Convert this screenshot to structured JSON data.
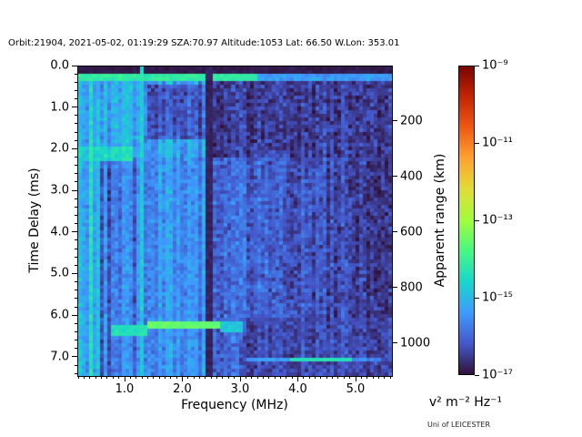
{
  "title": "Orbit:21904, 2021-05-02, 01:19:29 SZA:70.97 Altitude:1053 Lat: 66.50 W.Lon: 353.01",
  "credit": "Uni of LEICESTER",
  "chart_data": {
    "type": "heatmap",
    "title": "Orbit:21904, 2021-05-02, 01:19:29 SZA:70.97 Altitude:1053 Lat: 66.50 W.Lon: 353.01",
    "xlabel": "Frequency (MHz)",
    "ylabel": "Time Delay (ms)",
    "ylabel_right": "Apparent range (km)",
    "colorbar_units": "v² m⁻² Hz⁻¹",
    "x_range_mhz": [
      0.181,
      5.614
    ],
    "x_tick_values": [
      1.0,
      2.0,
      3.0,
      4.0,
      5.0
    ],
    "x_tick_labels": [
      "1.0",
      "2.0",
      "3.0",
      "4.0",
      "5.0"
    ],
    "x_minor_tick_step_mhz": 0.1,
    "y_range_ms": [
      0.0,
      7.44
    ],
    "y_tick_values": [
      0,
      1,
      2,
      3,
      4,
      5,
      6,
      7
    ],
    "y_tick_labels": [
      "0.0",
      "1.0",
      "2.0",
      "3.0",
      "4.0",
      "5.0",
      "6.0",
      "7.0"
    ],
    "y_minor_tick_step_ms": 0.2,
    "right_axis_tick_km": [
      200,
      400,
      600,
      800,
      1000
    ],
    "right_axis_tick_labels": [
      "200",
      "400",
      "600",
      "800",
      "1000"
    ],
    "speed_of_light_km_per_ms": 299.792,
    "colorbar_exponent_range": [
      -17,
      -9
    ],
    "colorbar_tick_exponents": [
      -9,
      -11,
      -13,
      -15,
      -17
    ],
    "colorbar_tick_labels": [
      "10⁻⁹",
      "10⁻¹¹",
      "10⁻¹³",
      "10⁻¹⁵",
      "10⁻¹⁷"
    ],
    "colormap": "turbo",
    "colormap_stops": [
      [
        0.0,
        "#30123b"
      ],
      [
        0.1,
        "#4458cb"
      ],
      [
        0.2,
        "#3e9bfe"
      ],
      [
        0.3,
        "#18d6cb"
      ],
      [
        0.4,
        "#46f884"
      ],
      [
        0.5,
        "#a2fc3c"
      ],
      [
        0.6,
        "#e1dd37"
      ],
      [
        0.7,
        "#fea331"
      ],
      [
        0.8,
        "#ef5a11"
      ],
      [
        0.9,
        "#c42503"
      ],
      [
        1.0,
        "#7a0403"
      ]
    ],
    "heatmap": {
      "cols": 86,
      "rows": 85,
      "seed": 1337,
      "regions": [
        {
          "name": "default",
          "f": [
            0.18,
            5.62
          ],
          "d": [
            0,
            7.44
          ],
          "base": -15.9,
          "jitter": 0.5,
          "streak": 0.3
        },
        {
          "name": "low-freq-bright-columns",
          "f": [
            0.18,
            0.55
          ],
          "d": [
            0,
            7.44
          ],
          "base": -15.0,
          "jitter": 0.45,
          "streak": 0.6
        },
        {
          "name": "topside-noise-left",
          "f": [
            0.55,
            2.45
          ],
          "d": [
            0,
            2.2
          ],
          "base": -15.3,
          "jitter": 0.5,
          "streak": 0.5
        },
        {
          "name": "dark-patch-top-mid",
          "f": [
            1.35,
            2.45
          ],
          "d": [
            0.45,
            1.75
          ],
          "base": -16.2,
          "jitter": 0.55,
          "streak": 0.3
        },
        {
          "name": "dark-top-right",
          "f": [
            2.45,
            5.62
          ],
          "d": [
            0,
            2.2
          ],
          "base": -16.45,
          "jitter": 0.55,
          "streak": 0.2
        },
        {
          "name": "dark-streaks-lower-left",
          "f": [
            0.55,
            1.2
          ],
          "d": [
            2.2,
            7.44
          ],
          "base": -16.0,
          "jitter": 0.5,
          "streak": 0.65
        },
        {
          "name": "mid-noise",
          "f": [
            1.2,
            2.45
          ],
          "d": [
            2.2,
            7.44
          ],
          "base": -15.55,
          "jitter": 0.5,
          "streak": 0.35
        },
        {
          "name": "right-noise-gradient",
          "f": [
            2.45,
            5.62
          ],
          "d": [
            2.2,
            7.44
          ],
          "base": -15.85,
          "jitter": 0.55,
          "streak": 0.25,
          "fgrad": -0.22
        },
        {
          "name": "dark-bottom-right",
          "f": [
            2.95,
            5.62
          ],
          "d": [
            6.0,
            7.44
          ],
          "base": -16.35,
          "jitter": 0.45,
          "streak": 0.2
        },
        {
          "name": "bright-left-2ms",
          "f": [
            0.18,
            1.15
          ],
          "d": [
            1.95,
            2.25
          ],
          "base": -14.6,
          "jitter": 0.35,
          "streak": 0.3
        }
      ],
      "features": [
        {
          "name": "dark-first-row",
          "mode": "set",
          "f": [
            0.18,
            5.62
          ],
          "d": [
            0,
            0.17
          ],
          "exp": -16.9,
          "jitter": 0.12
        },
        {
          "name": "bright-band-0.3ms-left",
          "mode": "max",
          "f": [
            0.18,
            3.3
          ],
          "d": [
            0.17,
            0.39
          ],
          "exp": -14.15,
          "jitter": 0.3
        },
        {
          "name": "bright-band-0.3ms-right",
          "mode": "max",
          "f": [
            3.3,
            5.62
          ],
          "d": [
            0.17,
            0.39
          ],
          "exp": -15.35,
          "jitter": 0.35
        },
        {
          "name": "interference-dark-column-2.4mhz",
          "mode": "set",
          "f": [
            2.39,
            2.51
          ],
          "d": [
            0,
            7.44
          ],
          "exp": -16.8,
          "jitter": 0.15
        },
        {
          "name": "plasma-line-1.3mhz",
          "mode": "max",
          "f": [
            1.23,
            1.34
          ],
          "d": [
            0,
            7.44
          ],
          "exp": -14.75,
          "jitter": 0.4
        },
        {
          "name": "ionospheric-echo-core",
          "mode": "max",
          "f": [
            1.4,
            2.65
          ],
          "d": [
            6.1,
            6.34
          ],
          "exp": -13.55,
          "jitter": 0.2
        },
        {
          "name": "ionospheric-echo-wing-left",
          "mode": "max",
          "f": [
            0.75,
            1.4
          ],
          "d": [
            6.22,
            6.5
          ],
          "exp": -14.35,
          "jitter": 0.3
        },
        {
          "name": "ionospheric-echo-wing-right",
          "mode": "max",
          "f": [
            2.65,
            3.05
          ],
          "d": [
            6.1,
            6.35
          ],
          "exp": -14.8,
          "jitter": 0.3
        },
        {
          "name": "ground-echo-line",
          "mode": "max",
          "f": [
            3.85,
            4.95
          ],
          "d": [
            7.0,
            7.13
          ],
          "exp": -14.35,
          "jitter": 0.15
        },
        {
          "name": "ground-echo-wing-left",
          "mode": "max",
          "f": [
            3.1,
            3.85
          ],
          "d": [
            7.0,
            7.13
          ],
          "exp": -15.35,
          "jitter": 0.3
        },
        {
          "name": "ground-echo-wing-right",
          "mode": "max",
          "f": [
            4.95,
            5.45
          ],
          "d": [
            7.0,
            7.13
          ],
          "exp": -15.7,
          "jitter": 0.3
        }
      ]
    }
  }
}
